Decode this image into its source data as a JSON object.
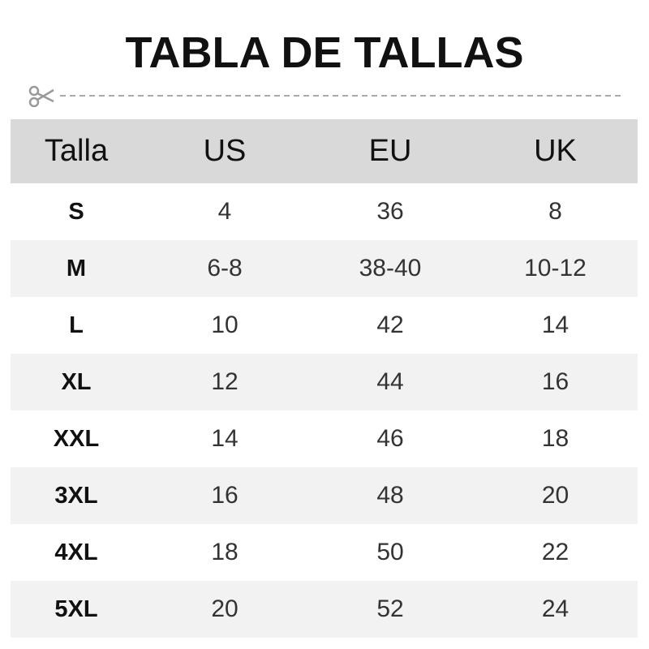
{
  "title": "TABLA DE TALLAS",
  "cut_icon": "scissors-icon",
  "colors": {
    "header_bg": "#d9d9d9",
    "alt_row_bg": "#f2f2f2"
  },
  "headers": [
    "Talla",
    "US",
    "EU",
    "UK"
  ],
  "rows": [
    [
      "S",
      "4",
      "36",
      "8"
    ],
    [
      "M",
      "6-8",
      "38-40",
      "10-12"
    ],
    [
      "L",
      "10",
      "42",
      "14"
    ],
    [
      "XL",
      "12",
      "44",
      "16"
    ],
    [
      "XXL",
      "14",
      "46",
      "18"
    ],
    [
      "3XL",
      "16",
      "48",
      "20"
    ],
    [
      "4XL",
      "18",
      "50",
      "22"
    ],
    [
      "5XL",
      "20",
      "52",
      "24"
    ]
  ]
}
